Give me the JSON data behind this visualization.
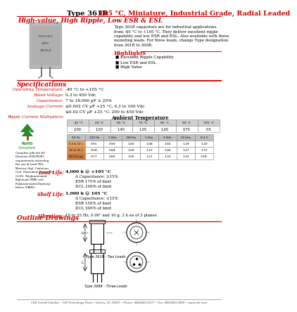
{
  "title_black": "Type 361R",
  "title_red": " 105 °C, Miniature, Industrial Grade, Radial Leaded",
  "subtitle": "High-value, High Ripple, Low ESR & ESL",
  "description_lines": [
    "Type 361R capacitors are for industrial applications",
    "from -40 °C to +105 °C. They deliver excellent ripple",
    "capability and low ESR and ESL. Also available with three",
    "mounting leads. For three leads, change Type designation",
    "from 361R to 366R."
  ],
  "highlights_title": "Highlights",
  "highlights": [
    "Excellent Ripple Capability",
    "Low ESR and ESL",
    "High Value"
  ],
  "specs_title": "Specifications",
  "specs": [
    [
      "Operating Temperature:",
      "-40 °C to +105 °C"
    ],
    [
      "Rated Voltage:",
      "6.3 to 450 Vdc"
    ],
    [
      "Capacitance:",
      "7 to 18,000 µF ± 20%"
    ],
    [
      "Leakage Current:",
      "≤0.002 CV µF +25 °C, 6.3 to 160 Vdc"
    ],
    [
      "",
      "≤0.02 CV µF +25 °C, 200 to 450 Vdc"
    ]
  ],
  "ripple_label": "Ripple Current Multipliers:",
  "ambient_label": "Ambient Temperature",
  "temp_headers": [
    "-40 °C",
    "44 °C",
    "65 °C",
    "75 °C",
    "85 °C",
    "94 °C",
    "105 °C"
  ],
  "temp_values": [
    "2.00",
    "1.50",
    "1.40",
    "1.25",
    "1.00",
    "0.75",
    "0.5"
  ],
  "freq_headers": [
    "50 Hz",
    "120 Hz",
    "1 kHz",
    "360 Hz",
    "1 kHz",
    "3 kHz",
    "10 kHz",
    "6.3 V"
  ],
  "freq_rows": [
    [
      "6.3 & 10 v",
      "0.91",
      "0.93",
      "1.00",
      "1.08",
      "1.66",
      "1.29",
      "1.20"
    ],
    [
      "16 to 25 v",
      "0.58",
      "0.84",
      "1.00",
      "1.12",
      "1.46",
      "1.27",
      "1.72"
    ],
    [
      "40 V & up",
      "0.77",
      "0.82",
      "1.00",
      "1.21",
      "1.32",
      "1.32",
      "1.58"
    ]
  ],
  "load_life_label": "Load Life:",
  "load_life_main": "4,000 h @ +105 °C",
  "load_life_items": [
    "Δ Capacitance: ±15%",
    "ESR 175% of limit",
    "DCL 100% of limit"
  ],
  "shelf_life_label": "Shelf Life:",
  "shelf_life_main": "1,000 h @ 105 °C",
  "shelf_life_items": [
    "Δ Capacitance: ±15%",
    "ESR 150% of limit",
    "DCL 200% of limit"
  ],
  "vibration_label": "Vibration:",
  "vibration_text": "10 to 55 Hz, 0.06\" and 10 g, 2 h ea of 3 planes",
  "outline_title": "Outline Drawings",
  "footer": "CDE Cornell Dubilier • 140 Technology Place • Liberty, SC 29657 • Phone: (864)843-2277 • Fax: (864)843-3800 • www.cde.com",
  "compliance_lines": [
    "Complies with the EU",
    "Directive 2002/95/EC",
    "requirements restricting",
    "the use of Lead (Pb),",
    "Mercury (Hg), Cadmium",
    "(Cd), Hexavalent chromium",
    "(CrVI), Polybrominated",
    "Biphenyls (PBB) and",
    "Polybrominated Diphenyl",
    "Ethers (PBDE)."
  ],
  "red": "#cc0000",
  "gray_bg": "#d8d8d8",
  "freq_label_bg": [
    "#e8a060",
    "#d89050",
    "#c87840"
  ],
  "freq_header_bg": "#c0c0c0"
}
